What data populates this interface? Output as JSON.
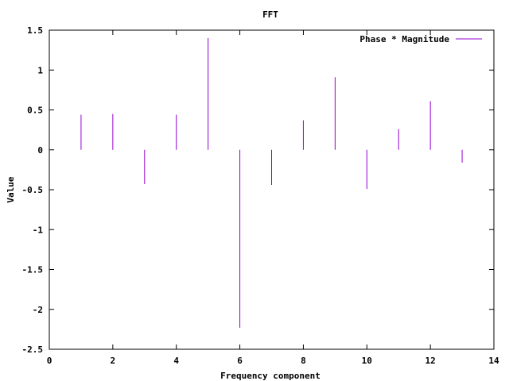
{
  "chart_data": {
    "type": "bar",
    "style": "impulses",
    "title": "FFT",
    "xlabel": "Frequency component",
    "ylabel": "Value",
    "xlim": [
      0,
      14
    ],
    "ylim": [
      -2.5,
      1.5
    ],
    "xticks": [
      "0",
      "2",
      "4",
      "6",
      "8",
      "10",
      "12",
      "14"
    ],
    "yticks": [
      "1.5",
      "1",
      "0.5",
      "0",
      "-0.5",
      "-1",
      "-1.5",
      "-2",
      "-2.5"
    ],
    "grid": false,
    "legend": "top-right",
    "series": [
      {
        "name": "Phase * Magnitude",
        "color": "#9400d3",
        "x": [
          1,
          2,
          3,
          4,
          5,
          6,
          7,
          8,
          9,
          10,
          11,
          12,
          13
        ],
        "values": [
          0.44,
          0.45,
          -0.43,
          0.44,
          1.4,
          -2.23,
          -0.44,
          0.37,
          0.91,
          -0.49,
          0.26,
          0.61,
          -0.16
        ]
      }
    ]
  }
}
